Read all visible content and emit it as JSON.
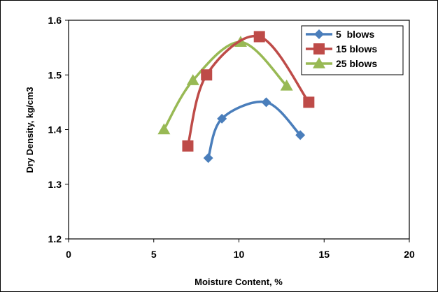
{
  "chart_data": {
    "type": "line",
    "title": "",
    "xlabel": "Moisture Content, %",
    "ylabel": "Dry Density, kg/cm3",
    "xlim": [
      0,
      20
    ],
    "ylim": [
      1.2,
      1.6
    ],
    "xticks": [
      "0",
      "5",
      "10",
      "15",
      "20"
    ],
    "yticks": [
      "1.2",
      "1.3",
      "1.4",
      "1.5",
      "1.6"
    ],
    "grid": false,
    "legend_position": "top-right",
    "series": [
      {
        "name": "5  blows",
        "color": "#4a7ebb",
        "marker": "diamond",
        "points": [
          [
            8.2,
            1.348
          ],
          [
            9.0,
            1.42
          ],
          [
            11.6,
            1.45
          ],
          [
            13.6,
            1.39
          ]
        ]
      },
      {
        "name": "15 blows",
        "color": "#be4b48",
        "marker": "square",
        "points": [
          [
            7.0,
            1.37
          ],
          [
            8.1,
            1.5
          ],
          [
            11.2,
            1.57
          ],
          [
            14.1,
            1.45
          ]
        ]
      },
      {
        "name": "25 blows",
        "color": "#98b954",
        "marker": "triangle",
        "points": [
          [
            5.6,
            1.4
          ],
          [
            7.3,
            1.49
          ],
          [
            10.1,
            1.56
          ],
          [
            12.8,
            1.48
          ]
        ]
      }
    ]
  }
}
